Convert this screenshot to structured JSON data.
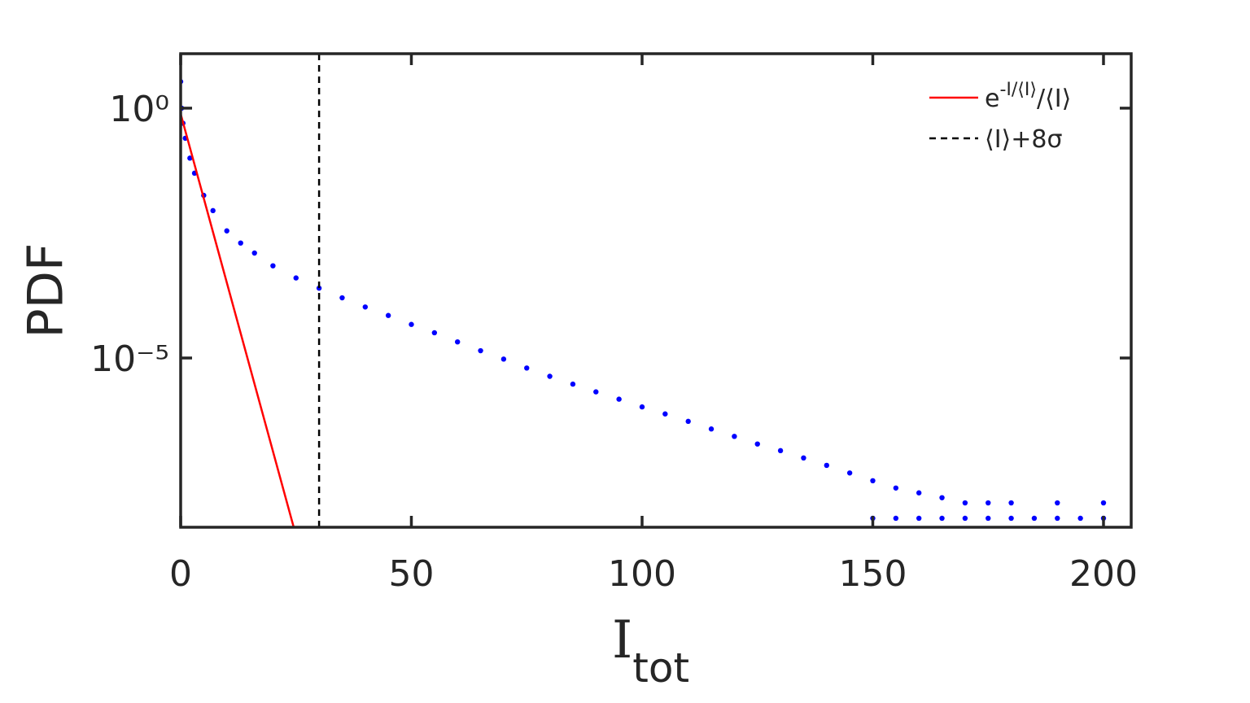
{
  "chart_data": {
    "type": "scatter",
    "xlabel": "I",
    "xlabel_sub": "tot",
    "ylabel": "PDF",
    "xlim": [
      0,
      206
    ],
    "ylim": [
      4.1e-09,
      12.3
    ],
    "log_y": true,
    "xticks": [
      0,
      50,
      100,
      150,
      200
    ],
    "yticks": [
      {
        "value": 1,
        "label": "10⁰"
      },
      {
        "value": 1e-05,
        "label": "10⁻⁵"
      }
    ],
    "legend_position": "upper right",
    "series": [
      {
        "name": "PDF",
        "color": "#0000ff",
        "x": [
          0,
          0.2,
          0.5,
          1,
          2,
          3,
          5,
          7,
          10,
          13,
          16,
          20,
          25,
          30,
          35,
          40,
          45,
          50,
          55,
          60,
          65,
          70,
          75,
          80,
          85,
          90,
          95,
          100,
          105,
          110,
          115,
          120,
          125,
          130,
          135,
          140,
          145,
          150,
          155,
          160,
          165,
          170,
          150,
          155,
          160,
          165,
          170,
          175,
          180,
          185,
          190,
          195,
          200,
          175,
          180,
          190,
          200
        ],
        "values": [
          3.4,
          1.0,
          0.5,
          0.25,
          0.1,
          0.05,
          0.018,
          0.0089,
          0.0035,
          0.002,
          0.00126,
          0.0007,
          0.0004,
          0.00025,
          0.00016,
          0.000105,
          7.1e-05,
          4.7e-05,
          3.2e-05,
          2.1e-05,
          1.4e-05,
          9.5e-06,
          6.3e-06,
          4.3e-06,
          3e-06,
          2.1e-06,
          1.5e-06,
          1.05e-06,
          7.6e-07,
          5.4e-07,
          3.8e-07,
          2.7e-07,
          1.9e-07,
          1.4e-07,
          1e-07,
          7.1e-08,
          5e-08,
          3.5e-08,
          2.5e-08,
          2e-08,
          1.6e-08,
          1.26e-08,
          6.2e-09,
          6.2e-09,
          6.2e-09,
          6.2e-09,
          6.2e-09,
          6.2e-09,
          6.2e-09,
          6.2e-09,
          6.2e-09,
          6.2e-09,
          6.2e-09,
          1.26e-08,
          1.26e-08,
          1.26e-08,
          1.26e-08
        ]
      },
      {
        "type": "line",
        "name": "e",
        "name_sup": "-I/⟨I⟩",
        "name_tail": "/⟨I⟩",
        "color": "#ff0000",
        "x": [
          0,
          24.5
        ],
        "values": [
          0.77,
          4.1e-09
        ]
      },
      {
        "type": "vline",
        "name": "⟨I⟩+8σ",
        "color": "#000000",
        "dash": true,
        "x": 30
      }
    ]
  }
}
